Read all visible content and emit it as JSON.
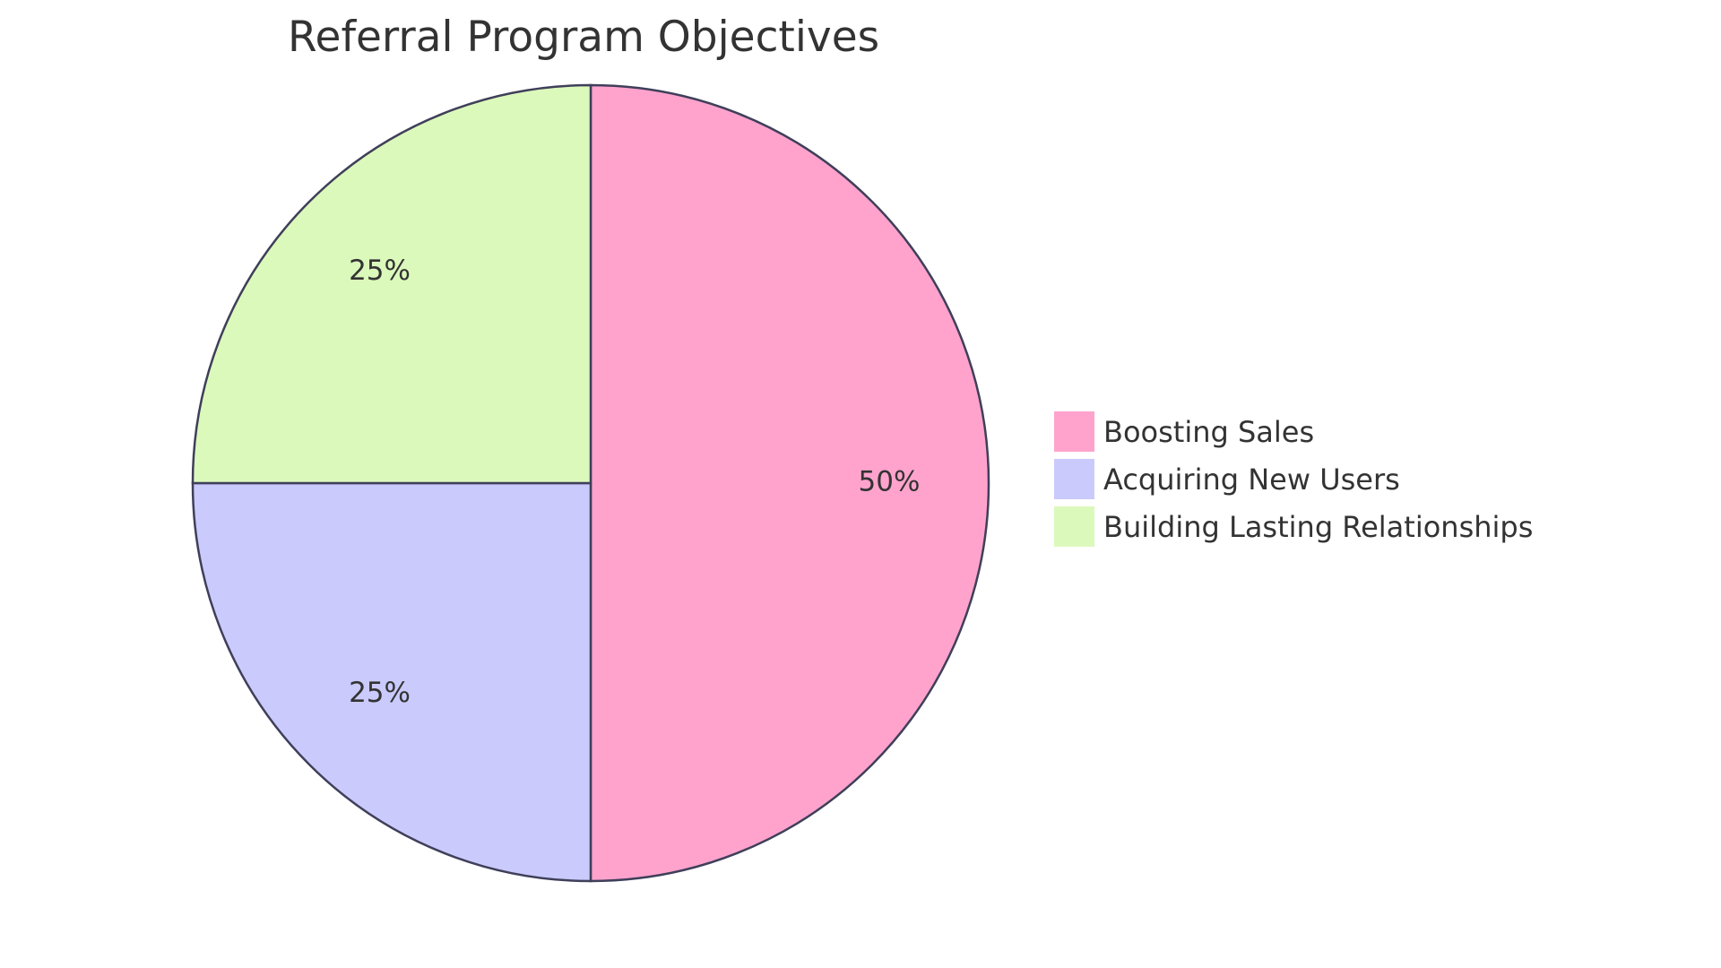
{
  "chart_data": {
    "type": "pie",
    "title": "Referral Program Objectives",
    "slices": [
      {
        "label": "Boosting Sales",
        "value": 50,
        "display": "50%",
        "color": "#FFA3CD"
      },
      {
        "label": "Acquiring New Users",
        "value": 25,
        "display": "25%",
        "color": "#CACAFD"
      },
      {
        "label": "Building Lasting Relationships",
        "value": 25,
        "display": "25%",
        "color": "#DCF9BC"
      }
    ],
    "stroke_color": "#3F3F5A",
    "legend_position": "right"
  }
}
